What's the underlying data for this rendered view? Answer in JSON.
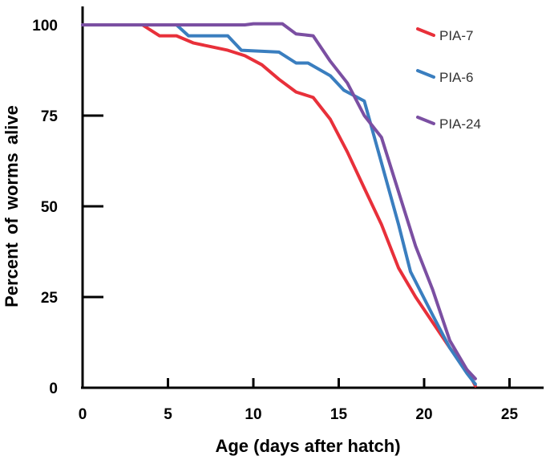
{
  "chart_data": {
    "type": "line",
    "title": "",
    "xlabel": "Age (days after hatch)",
    "ylabel": "Percent  of  worms  alive",
    "xlim": [
      0,
      27
    ],
    "ylim": [
      0,
      100
    ],
    "xticks": [
      0,
      5,
      10,
      15,
      20,
      25
    ],
    "yticks": [
      0,
      25,
      50,
      75,
      100
    ],
    "legend_position": "top-right",
    "grid": false,
    "series": [
      {
        "name": "PIA-7",
        "color": "#e8303a",
        "x": [
          0,
          3.5,
          4.5,
          5.5,
          6.5,
          7.5,
          8.5,
          9.5,
          10.5,
          11.5,
          12.5,
          13.5,
          14.5,
          15.5,
          16.5,
          17.5,
          18.5,
          19.5,
          20.5,
          21.5,
          22.5,
          23
        ],
        "y": [
          100,
          100,
          97,
          97,
          95,
          94,
          93,
          91.5,
          89,
          85,
          81.5,
          80,
          74,
          65,
          55,
          45,
          33,
          25,
          18,
          11,
          5,
          0.5
        ]
      },
      {
        "name": "PIA-6",
        "color": "#3a7ebf",
        "x": [
          0,
          5.5,
          6.2,
          8.5,
          9.3,
          11.5,
          12.5,
          13.2,
          14.5,
          15.3,
          16.5,
          17.5,
          18.5,
          19.2,
          20.5,
          21.5,
          22.5,
          23
        ],
        "y": [
          100,
          100,
          97,
          97,
          93,
          92.5,
          89.5,
          89.5,
          86,
          82,
          79,
          62,
          45,
          32,
          20,
          11,
          4,
          1
        ]
      },
      {
        "name": "PIA-24",
        "color": "#7b4fa2",
        "x": [
          0,
          9.5,
          10,
          11.7,
          12.5,
          13.5,
          14.5,
          15.5,
          16.5,
          17.5,
          18.5,
          19.5,
          20.5,
          21.5,
          22.5,
          23
        ],
        "y": [
          100,
          100,
          100.3,
          100.3,
          97.5,
          97,
          90,
          84,
          75,
          69,
          54,
          39,
          27,
          13,
          5,
          2.5
        ]
      }
    ]
  }
}
